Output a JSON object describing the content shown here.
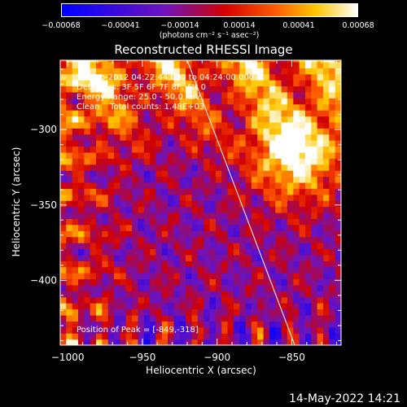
{
  "colorbar": {
    "ticks": [
      "−0.00068",
      "−0.00041",
      "−0.00014",
      "0.00014",
      "0.00041",
      "0.00068"
    ],
    "unit": "(photons cm⁻² s⁻¹ asec⁻²)"
  },
  "chart_data": {
    "type": "heatmap",
    "title": "Reconstructed RHESSI Image",
    "xlabel": "Heliocentric X (arcsec)",
    "ylabel": "Heliocentric Y (arcsec)",
    "xlim": [
      -1005,
      -817
    ],
    "ylim": [
      -443,
      -254
    ],
    "xticks": [
      -1000,
      -950,
      -900,
      -850
    ],
    "xtick_labels": [
      "−1000",
      "−950",
      "−900",
      "−850"
    ],
    "yticks": [
      -300,
      -350,
      -400
    ],
    "ytick_labels": [
      "−300",
      "−350",
      "−400"
    ],
    "value_range": [
      -0.00068,
      0.00068
    ],
    "limb_line": [
      [
        -920,
        -254
      ],
      [
        -848,
        -443
      ]
    ],
    "peak_position": [
      -849,
      -318
    ],
    "annotations": [
      "18-Sep-2012 04:22:44.000 to 04:24:00.000",
      "Detectors: 3F 5F 6F 7F 8F, Att 0",
      "Energy Range: 25.0 - 50.0 keV",
      "Clean    Total counts: 1.48E+03",
      "Position of Peak = [-849,-318]"
    ]
  },
  "footer": {
    "date": "14-May-2022 14:21"
  },
  "colors": {
    "background": "#000000",
    "axes": "#ffffff"
  }
}
